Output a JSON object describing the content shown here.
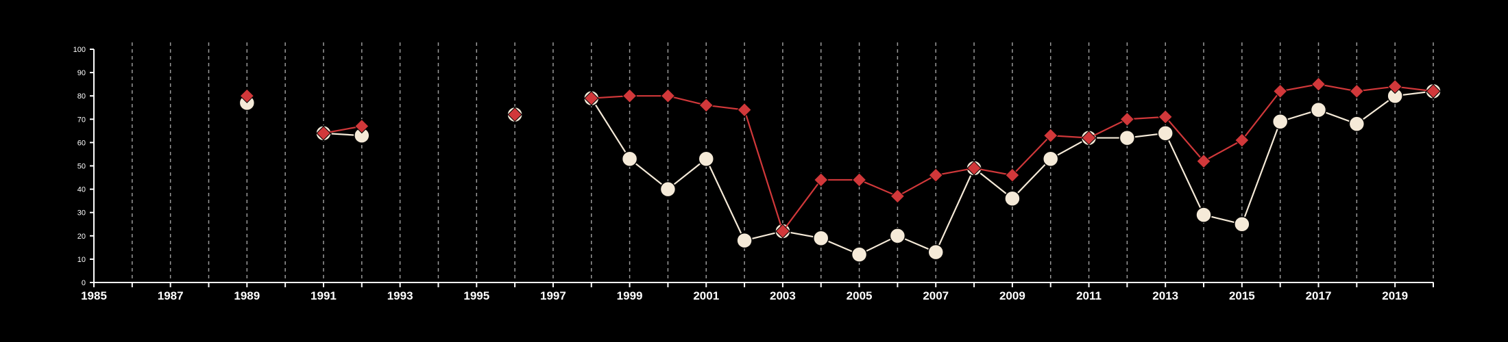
{
  "chart_data": {
    "type": "line",
    "xlim": [
      1985,
      2020
    ],
    "ylim": [
      0,
      100
    ],
    "x_ticks": [
      1985,
      1987,
      1989,
      1991,
      1993,
      1995,
      1997,
      1999,
      2001,
      2003,
      2005,
      2007,
      2009,
      2011,
      2013,
      2015,
      2017,
      2019
    ],
    "y_ticks": [
      0,
      10,
      20,
      30,
      40,
      50,
      60,
      70,
      80,
      90,
      100
    ],
    "grid": "vertical dashed lines at every year",
    "legend": "none",
    "series": [
      {
        "color": "#f5ead8",
        "marker": "circle",
        "points": [
          [
            1989,
            77
          ],
          [
            1991,
            64
          ],
          [
            1992,
            63
          ],
          [
            1996,
            72
          ],
          [
            1998,
            79
          ],
          [
            1999,
            53
          ],
          [
            2000,
            40
          ],
          [
            2001,
            53
          ],
          [
            2002,
            18
          ],
          [
            2003,
            22
          ],
          [
            2004,
            19
          ],
          [
            2005,
            12
          ],
          [
            2006,
            20
          ],
          [
            2007,
            13
          ],
          [
            2008,
            49
          ],
          [
            2009,
            36
          ],
          [
            2010,
            53
          ],
          [
            2011,
            62
          ],
          [
            2012,
            62
          ],
          [
            2013,
            64
          ],
          [
            2014,
            29
          ],
          [
            2015,
            25
          ],
          [
            2016,
            69
          ],
          [
            2017,
            74
          ],
          [
            2018,
            68
          ],
          [
            2019,
            80
          ],
          [
            2020,
            82
          ]
        ]
      },
      {
        "color": "#d1383a",
        "marker": "diamond",
        "points": [
          [
            1989,
            80
          ],
          [
            1991,
            64
          ],
          [
            1992,
            67
          ],
          [
            1996,
            72
          ],
          [
            1998,
            79
          ],
          [
            1999,
            80
          ],
          [
            2000,
            80
          ],
          [
            2001,
            76
          ],
          [
            2002,
            74
          ],
          [
            2003,
            22
          ],
          [
            2004,
            44
          ],
          [
            2005,
            44
          ],
          [
            2006,
            37
          ],
          [
            2007,
            46
          ],
          [
            2008,
            49
          ],
          [
            2009,
            46
          ],
          [
            2010,
            63
          ],
          [
            2011,
            62
          ],
          [
            2012,
            70
          ],
          [
            2013,
            71
          ],
          [
            2014,
            52
          ],
          [
            2015,
            61
          ],
          [
            2016,
            82
          ],
          [
            2017,
            85
          ],
          [
            2018,
            82
          ],
          [
            2019,
            84
          ],
          [
            2020,
            82
          ]
        ]
      }
    ]
  }
}
